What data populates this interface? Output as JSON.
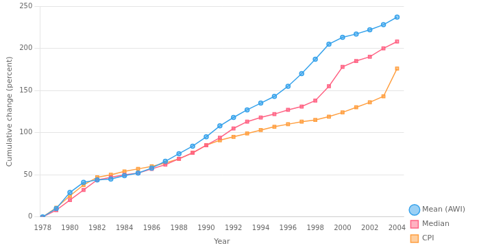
{
  "chart_data": {
    "type": "line",
    "xlabel": "Year",
    "ylabel": "Cumulative change (percent)",
    "x": [
      1978,
      1979,
      1980,
      1981,
      1982,
      1983,
      1984,
      1985,
      1986,
      1987,
      1988,
      1989,
      1990,
      1991,
      1992,
      1993,
      1994,
      1995,
      1996,
      1997,
      1998,
      1999,
      2000,
      2001,
      2002,
      2003,
      2004
    ],
    "series": [
      {
        "name": "Mean (AWI)",
        "marker": "circle",
        "values": [
          0,
          10,
          29,
          41,
          44,
          45,
          49,
          52,
          58,
          66,
          75,
          84,
          95,
          108,
          118,
          127,
          135,
          143,
          155,
          170,
          187,
          205,
          213,
          217,
          222,
          228,
          237
        ]
      },
      {
        "name": "Median",
        "marker": "square",
        "values": [
          0,
          8,
          20,
          32,
          44,
          47,
          50,
          52,
          57,
          62,
          69,
          76,
          85,
          94,
          105,
          113,
          118,
          122,
          127,
          131,
          138,
          155,
          178,
          185,
          190,
          200,
          208
        ]
      },
      {
        "name": "CPI",
        "marker": "square",
        "values": [
          0,
          11,
          25,
          38,
          47,
          50,
          54,
          57,
          60,
          64,
          69,
          76,
          85,
          91,
          95,
          99,
          103,
          107,
          110,
          113,
          115,
          119,
          124,
          130,
          136,
          143,
          176
        ]
      }
    ],
    "xlim": [
      1977.8,
      2004.5
    ],
    "xticks": [
      1978,
      1980,
      1982,
      1984,
      1986,
      1988,
      1990,
      1992,
      1994,
      1996,
      1998,
      2000,
      2002,
      2004
    ],
    "ylim": [
      0,
      250
    ],
    "yticks": [
      0,
      50,
      100,
      150,
      200,
      250
    ],
    "grid": "y",
    "legend": "lower right"
  }
}
